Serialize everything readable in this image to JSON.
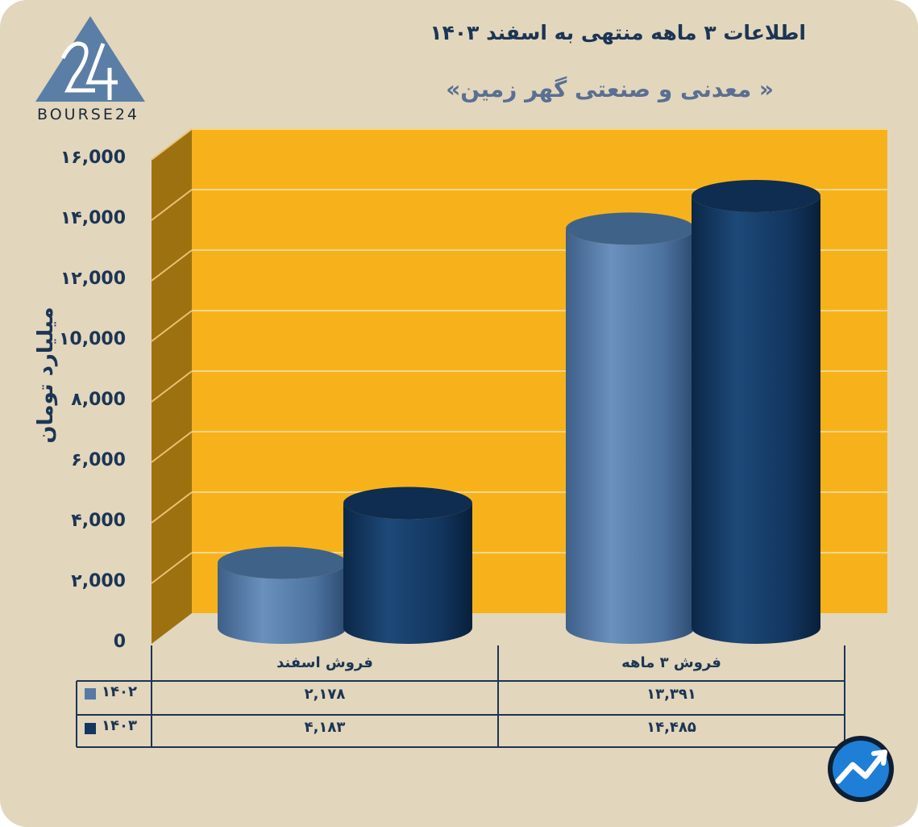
{
  "title": "اطلاعات ۳ ماهه منتهی به اسفند ۱۴۰۳",
  "subtitle": "« معدنی و صنعتی گهر زمین»",
  "logo_text": "BOURSE24",
  "colors": {
    "background": "#e2d6bd",
    "plot_back": "#f7b21b",
    "plot_side": "#9e7110",
    "series_1402": "#547aa5",
    "series_1403": "#12365f",
    "text": "#1c3553"
  },
  "chart_data": {
    "type": "bar",
    "ylabel": "میلیارد تومان",
    "ylim": [
      0,
      16000
    ],
    "yticks": [
      0,
      2000,
      4000,
      6000,
      8000,
      10000,
      12000,
      14000,
      16000
    ],
    "ytick_labels": [
      "0",
      "۲,000",
      "۴,000",
      "۶,000",
      "۸,000",
      "۱0,000",
      "۱۲,000",
      "۱۴,000",
      "۱۶,000"
    ],
    "categories": [
      "فروش اسفند",
      "فروش ۳ ماهه"
    ],
    "series": [
      {
        "name": "۱۴۰۲",
        "values": [
          2178,
          13391
        ],
        "labels": [
          "۲,۱۷۸",
          "۱۳,۳۹۱"
        ]
      },
      {
        "name": "۱۴۰۳",
        "values": [
          4183,
          14485
        ],
        "labels": [
          "۴,۱۸۳",
          "۱۴,۴۸۵"
        ]
      }
    ],
    "grid": true,
    "legend": "table-left"
  }
}
